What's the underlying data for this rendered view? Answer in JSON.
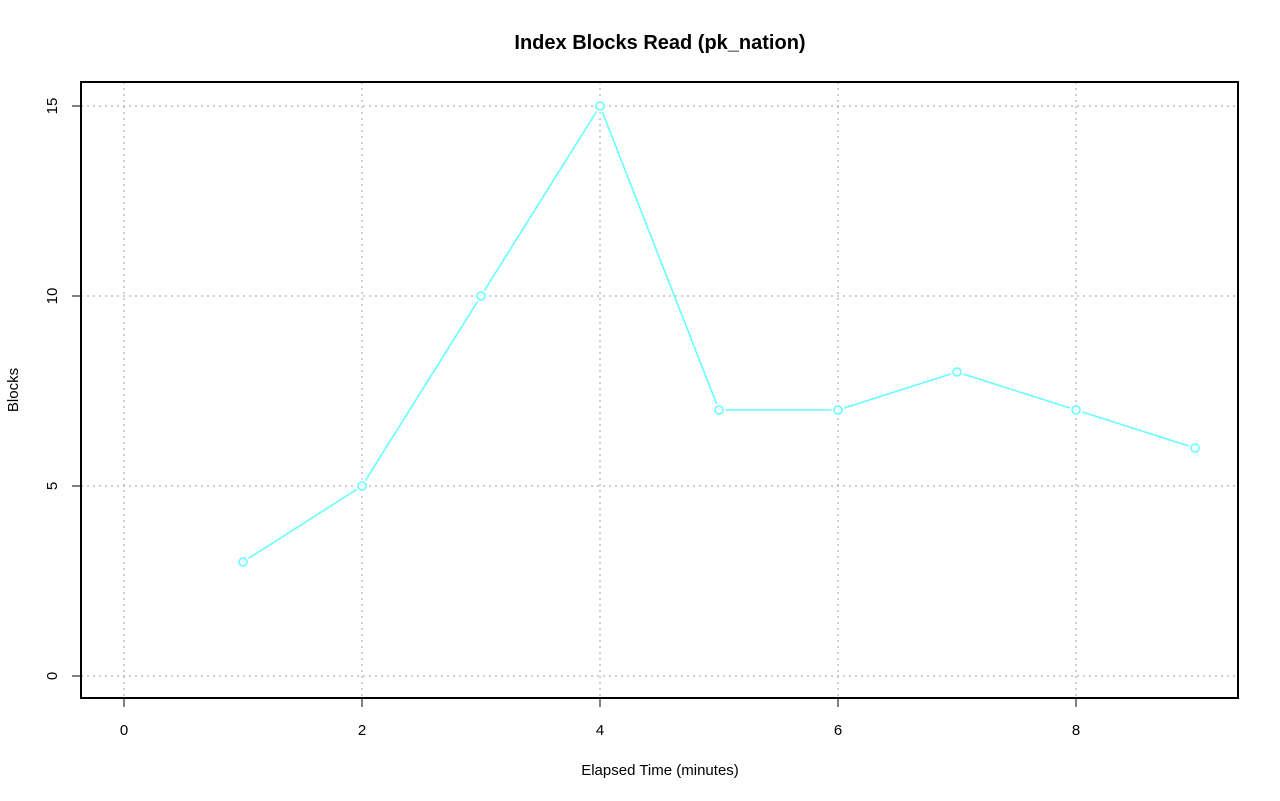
{
  "chart_data": {
    "type": "line",
    "title": "Index Blocks Read (pk_nation)",
    "xlabel": "Elapsed Time (minutes)",
    "ylabel": "Blocks",
    "xlim": [
      0,
      9
    ],
    "ylim": [
      0,
      15
    ],
    "x_ticks": [
      0,
      2,
      4,
      6,
      8
    ],
    "y_ticks": [
      0,
      5,
      10,
      15
    ],
    "x_tick_labels": [
      "0",
      "2",
      "4",
      "6",
      "8"
    ],
    "y_tick_labels": [
      "0",
      "5",
      "10",
      "15"
    ],
    "grid": true,
    "series": [
      {
        "color": "#66ffff",
        "x": [
          1,
          2,
          3,
          4,
          5,
          6,
          7,
          8,
          9
        ],
        "y": [
          3,
          5,
          10,
          15,
          7,
          7,
          8,
          7,
          6
        ]
      }
    ]
  }
}
